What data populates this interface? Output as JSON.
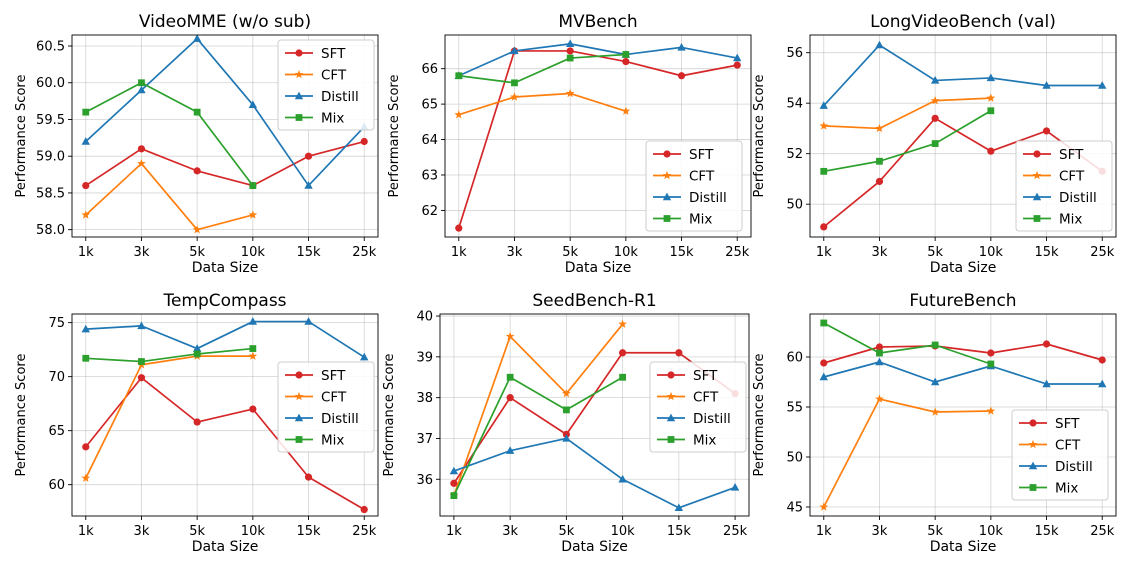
{
  "colors": {
    "SFT": "#d62728",
    "CFT": "#ff7f0e",
    "Distill": "#1f77b4",
    "Mix": "#2ca02c"
  },
  "markers": {
    "SFT": "circle",
    "CFT": "star",
    "Distill": "triangle",
    "Mix": "square"
  },
  "chart_data": [
    {
      "type": "line",
      "title": "VideoMME (w/o sub)",
      "xlabel": "Data Size",
      "ylabel": "Performance Score",
      "categories": [
        "1k",
        "3k",
        "5k",
        "10k",
        "15k",
        "25k"
      ],
      "ylim": [
        57.9,
        60.65
      ],
      "yticks": [
        58.0,
        58.5,
        59.0,
        59.5,
        60.0,
        60.5
      ],
      "ytick_labels": [
        "58.0",
        "58.5",
        "59.0",
        "59.5",
        "60.0",
        "60.5"
      ],
      "grid": true,
      "legend_position": "top-right",
      "series": [
        {
          "name": "SFT",
          "values": [
            58.6,
            59.1,
            58.8,
            58.6,
            59.0,
            59.2
          ]
        },
        {
          "name": "CFT",
          "values": [
            58.2,
            58.9,
            58.0,
            58.2,
            null,
            null
          ]
        },
        {
          "name": "Distill",
          "values": [
            59.2,
            59.9,
            60.6,
            59.7,
            58.6,
            59.4
          ]
        },
        {
          "name": "Mix",
          "values": [
            59.6,
            60.0,
            59.6,
            58.6,
            null,
            null
          ]
        }
      ]
    },
    {
      "type": "line",
      "title": "MVBench",
      "xlabel": "Data Size",
      "ylabel": "Performance Score",
      "categories": [
        "1k",
        "3k",
        "5k",
        "10k",
        "15k",
        "25k"
      ],
      "ylim": [
        61.25,
        66.95
      ],
      "yticks": [
        62,
        63,
        64,
        65,
        66
      ],
      "ytick_labels": [
        "62",
        "63",
        "64",
        "65",
        "66"
      ],
      "grid": true,
      "legend_position": "bottom-right",
      "series": [
        {
          "name": "SFT",
          "values": [
            61.5,
            66.5,
            66.5,
            66.2,
            65.8,
            66.1
          ]
        },
        {
          "name": "CFT",
          "values": [
            64.7,
            65.2,
            65.3,
            64.8,
            null,
            null
          ]
        },
        {
          "name": "Distill",
          "values": [
            65.8,
            66.5,
            66.7,
            66.4,
            66.6,
            66.3
          ]
        },
        {
          "name": "Mix",
          "values": [
            65.8,
            65.6,
            66.3,
            66.4,
            null,
            null
          ]
        }
      ]
    },
    {
      "type": "line",
      "title": "LongVideoBench (val)",
      "xlabel": "Data Size",
      "ylabel": "Performance Score",
      "categories": [
        "1k",
        "3k",
        "5k",
        "10k",
        "15k",
        "25k"
      ],
      "ylim": [
        48.7,
        56.7
      ],
      "yticks": [
        50,
        52,
        54,
        56
      ],
      "ytick_labels": [
        "50",
        "52",
        "54",
        "56"
      ],
      "grid": true,
      "legend_position": "bottom-right",
      "series": [
        {
          "name": "SFT",
          "values": [
            49.1,
            50.9,
            53.4,
            52.1,
            52.9,
            51.3
          ]
        },
        {
          "name": "CFT",
          "values": [
            53.1,
            53.0,
            54.1,
            54.2,
            null,
            null
          ]
        },
        {
          "name": "Distill",
          "values": [
            53.9,
            56.3,
            54.9,
            55.0,
            54.7,
            54.7
          ]
        },
        {
          "name": "Mix",
          "values": [
            51.3,
            51.7,
            52.4,
            53.7,
            null,
            null
          ]
        }
      ]
    },
    {
      "type": "line",
      "title": "TempCompass",
      "xlabel": "Data Size",
      "ylabel": "Performance Score",
      "categories": [
        "1k",
        "3k",
        "5k",
        "10k",
        "15k",
        "25k"
      ],
      "ylim": [
        57.1,
        75.8
      ],
      "yticks": [
        60,
        65,
        70,
        75
      ],
      "ytick_labels": [
        "60",
        "65",
        "70",
        "75"
      ],
      "grid": true,
      "legend_position": "center-right",
      "series": [
        {
          "name": "SFT",
          "values": [
            63.5,
            69.9,
            65.8,
            67.0,
            60.7,
            57.7
          ]
        },
        {
          "name": "CFT",
          "values": [
            60.6,
            71.1,
            71.9,
            71.9,
            null,
            null
          ]
        },
        {
          "name": "Distill",
          "values": [
            74.4,
            74.7,
            72.6,
            75.1,
            75.1,
            71.8
          ]
        },
        {
          "name": "Mix",
          "values": [
            71.7,
            71.4,
            72.1,
            72.6,
            null,
            null
          ]
        }
      ]
    },
    {
      "type": "line",
      "title": "SeedBench-R1",
      "xlabel": "Data Size",
      "ylabel": "Performance Score",
      "categories": [
        "1k",
        "3k",
        "5k",
        "10k",
        "15k",
        "25k"
      ],
      "ylim": [
        35.1,
        40.05
      ],
      "yticks": [
        36,
        37,
        38,
        39,
        40
      ],
      "ytick_labels": [
        "36",
        "37",
        "38",
        "39",
        "40"
      ],
      "grid": true,
      "legend_position": "center-right",
      "series": [
        {
          "name": "SFT",
          "values": [
            35.9,
            38.0,
            37.1,
            39.1,
            39.1,
            38.1
          ]
        },
        {
          "name": "CFT",
          "values": [
            35.6,
            39.5,
            38.1,
            39.8,
            null,
            null
          ]
        },
        {
          "name": "Distill",
          "values": [
            36.2,
            36.7,
            37.0,
            36.0,
            35.3,
            35.8
          ]
        },
        {
          "name": "Mix",
          "values": [
            35.6,
            38.5,
            37.7,
            38.5,
            null,
            null
          ]
        }
      ]
    },
    {
      "type": "line",
      "title": "FutureBench",
      "xlabel": "Data Size",
      "ylabel": "Performance Score",
      "categories": [
        "1k",
        "3k",
        "5k",
        "10k",
        "15k",
        "25k"
      ],
      "ylim": [
        44.1,
        64.3
      ],
      "yticks": [
        45,
        50,
        55,
        60
      ],
      "ytick_labels": [
        "45",
        "50",
        "55",
        "60"
      ],
      "grid": true,
      "legend_position": "bottom-right",
      "series": [
        {
          "name": "SFT",
          "values": [
            59.4,
            61.0,
            61.1,
            60.4,
            61.3,
            59.7
          ]
        },
        {
          "name": "CFT",
          "values": [
            45.0,
            55.8,
            54.5,
            54.6,
            null,
            null
          ]
        },
        {
          "name": "Distill",
          "values": [
            58.0,
            59.5,
            57.5,
            59.1,
            57.3,
            57.3
          ]
        },
        {
          "name": "Mix",
          "values": [
            63.4,
            60.4,
            61.2,
            59.3,
            null,
            null
          ]
        }
      ]
    }
  ]
}
